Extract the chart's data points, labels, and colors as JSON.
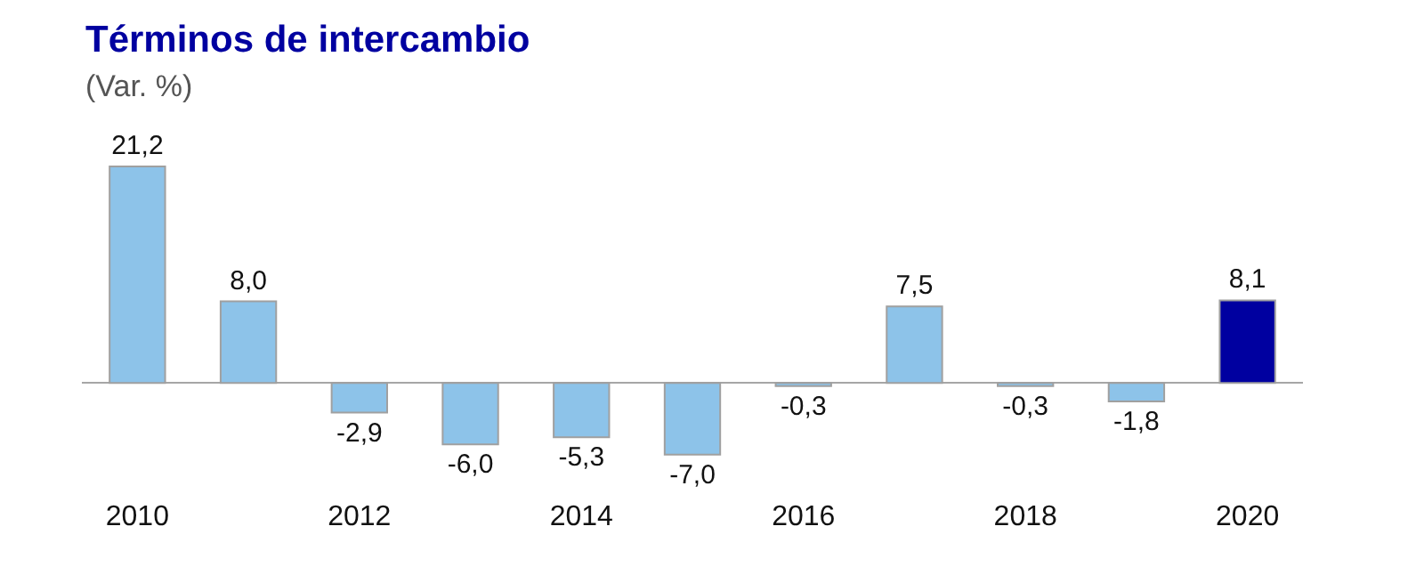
{
  "chart_data": {
    "type": "bar",
    "title": "Términos de intercambio",
    "subtitle": "(Var. %)",
    "categories": [
      "2010",
      null,
      "2012",
      null,
      "2014",
      null,
      "2016",
      null,
      "2018",
      null,
      "2020"
    ],
    "values": [
      21.2,
      8.0,
      -2.9,
      -6.0,
      -5.3,
      -7.0,
      -0.3,
      7.5,
      -0.3,
      -1.8,
      8.1
    ],
    "colors": [
      "#8dc3e9",
      "#8dc3e9",
      "#8dc3e9",
      "#8dc3e9",
      "#8dc3e9",
      "#8dc3e9",
      "#8dc3e9",
      "#8dc3e9",
      "#8dc3e9",
      "#8dc3e9",
      "#0000a0"
    ],
    "value_labels": [
      "21,2",
      "8,0",
      "-2,9",
      "-6,0",
      "-5,3",
      "-7,0",
      "-0,3",
      "7,5",
      "-0,3",
      "-1,8",
      "8,1"
    ],
    "legend": false
  }
}
